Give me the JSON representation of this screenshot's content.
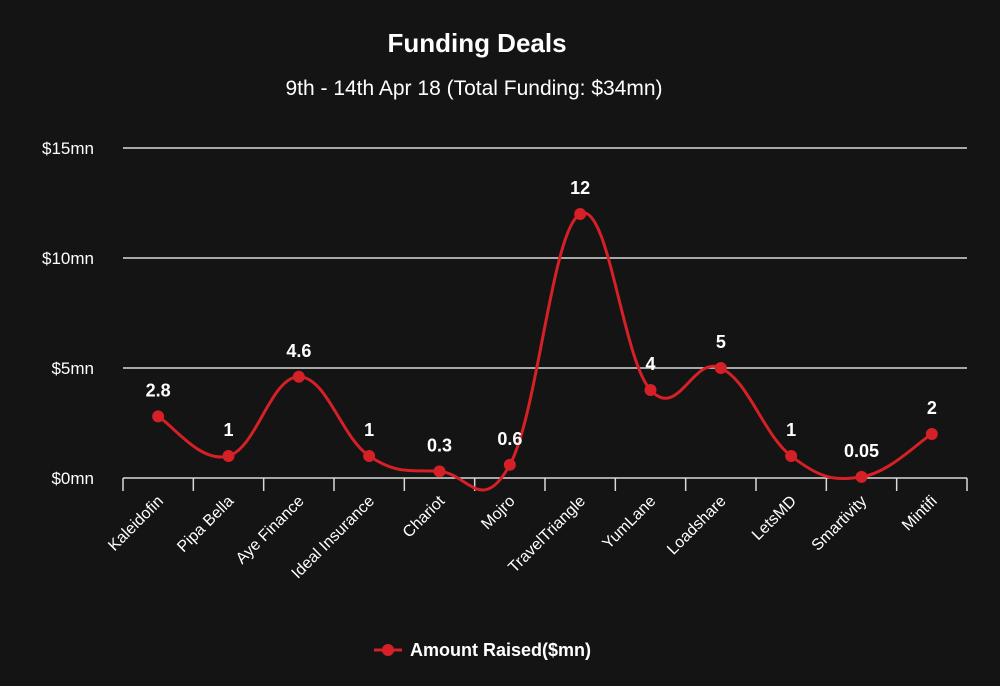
{
  "chart_data": {
    "type": "line",
    "title": "Funding Deals",
    "subtitle": "9th - 14th Apr 18 (Total Funding: $34mn)",
    "categories": [
      "Kaleidofin",
      "Pipa Bella",
      "Aye Finance",
      "Ideal Insurance",
      "Chariot",
      "Mojro",
      "TravelTriangle",
      "YumLane",
      "Loadshare",
      "LetsMD",
      "Smartivity",
      "Mintifi"
    ],
    "series": [
      {
        "name": "Amount Raised($mn)",
        "values": [
          2.8,
          1,
          4.6,
          1,
          0.3,
          0.6,
          12,
          4,
          5,
          1,
          0.05,
          2
        ],
        "data_labels": [
          "2.8",
          "1",
          "4.6",
          "1",
          "0.3",
          "0.6",
          "12",
          "4",
          "5",
          "1",
          "0.05",
          "2"
        ],
        "color": "#d42026"
      }
    ],
    "ylim": [
      0,
      15
    ],
    "yticks": [
      0,
      5,
      10,
      15
    ],
    "ytick_labels": [
      "$0mn",
      "$5mn",
      "$10mn",
      "$15mn"
    ],
    "grid": true,
    "legend_position": "bottom-center",
    "smooth": true
  },
  "colors": {
    "background": "#141414",
    "grid": "#d9d9d9",
    "text": "#ffffff",
    "series": "#d42026"
  }
}
